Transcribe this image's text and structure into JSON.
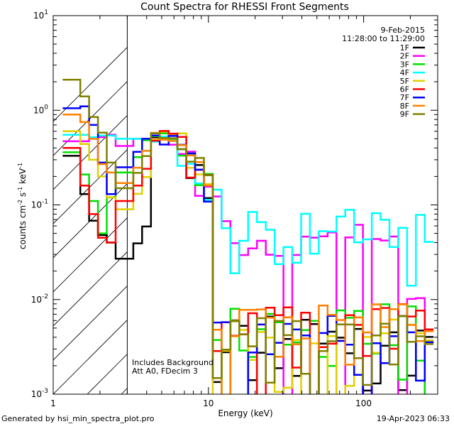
{
  "chart_data": {
    "type": "line",
    "title": "Count Spectra for RHESSI Front Segments",
    "xlabel": "Energy (keV)",
    "ylabel_parts": [
      "counts cm",
      "-2",
      " s",
      "-1",
      " keV",
      "-1"
    ],
    "xscale": "log",
    "yscale": "log",
    "xlim": [
      1,
      300
    ],
    "ylim": [
      0.001,
      10
    ],
    "x_tick_labels": [
      {
        "value": 1,
        "label": "1"
      },
      {
        "value": 10,
        "label": "10"
      },
      {
        "value": 100,
        "label": "100"
      }
    ],
    "y_tick_labels": [
      {
        "value": 0.001,
        "base": "10",
        "exp": "-3"
      },
      {
        "value": 0.01,
        "base": "10",
        "exp": "-2"
      },
      {
        "value": 0.1,
        "base": "10",
        "exp": "-1"
      },
      {
        "value": 1,
        "base": "10",
        "exp": "0"
      },
      {
        "value": 10,
        "base": "10",
        "exp": "1"
      }
    ],
    "date": "9-Feb-2015",
    "time_range": "11:28:00 to 11:29:00",
    "attenuator_note_1": "Includes Background",
    "attenuator_note_2": "Att A0, FDecim 3",
    "hatched_region_xmax": 3,
    "series": [
      {
        "name": "1F",
        "color": "#000000",
        "low": [
          0.33,
          0.33,
          0.13,
          0.068,
          0.048,
          0.04,
          0.027,
          0.027
        ],
        "peak": 0.5,
        "bg": 0.003,
        "drop": 11
      },
      {
        "name": "2F",
        "color": "#ff00ff",
        "low": [
          0.47,
          0.47,
          0.47,
          0.5,
          0.52,
          0.55,
          0.42,
          0.42
        ],
        "peak": 0.5,
        "bg": 0.028,
        "drop": 14
      },
      {
        "name": "3F",
        "color": "#00e000",
        "low": [
          0.36,
          0.36,
          0.21,
          0.11,
          0.05,
          0.12,
          0.22,
          0.22
        ],
        "peak": 0.55,
        "bg": 0.004,
        "drop": 11
      },
      {
        "name": "4F",
        "color": "#00ffff",
        "low": [
          0.55,
          0.55,
          0.55,
          0.52,
          0.54,
          0.54,
          0.5,
          0.5
        ],
        "peak": 0.5,
        "bg": 0.04,
        "drop": 14
      },
      {
        "name": "5F",
        "color": "#e0d000",
        "low": [
          0.6,
          0.6,
          0.44,
          0.3,
          0.2,
          0.12,
          0.09,
          0.09
        ],
        "peak": 0.55,
        "bg": 0.003,
        "drop": 11
      },
      {
        "name": "6F",
        "color": "#ff0000",
        "low": [
          0.4,
          0.4,
          0.16,
          0.08,
          0.045,
          0.04,
          0.11,
          0.11
        ],
        "peak": 0.55,
        "bg": 0.004,
        "drop": 11
      },
      {
        "name": "7F",
        "color": "#0000ff",
        "low": [
          1.05,
          1.05,
          1.1,
          0.7,
          0.28,
          0.13,
          0.25,
          0.25
        ],
        "peak": 0.5,
        "bg": 0.003,
        "drop": 10
      },
      {
        "name": "8F",
        "color": "#ff8000",
        "low": [
          0.9,
          0.9,
          0.75,
          0.5,
          0.27,
          0.22,
          0.17,
          0.17
        ],
        "peak": 0.55,
        "bg": 0.004,
        "drop": 11
      },
      {
        "name": "9F",
        "color": "#808000",
        "low": [
          2.1,
          2.1,
          1.4,
          0.85,
          0.58,
          0.28,
          0.15,
          0.15
        ],
        "peak": 0.56,
        "bg": 0.003,
        "drop": 10
      }
    ]
  },
  "footer": {
    "generated_by": "Generated by hsi_min_spectra_plot.pro",
    "timestamp": "19-Apr-2023 06:33"
  }
}
